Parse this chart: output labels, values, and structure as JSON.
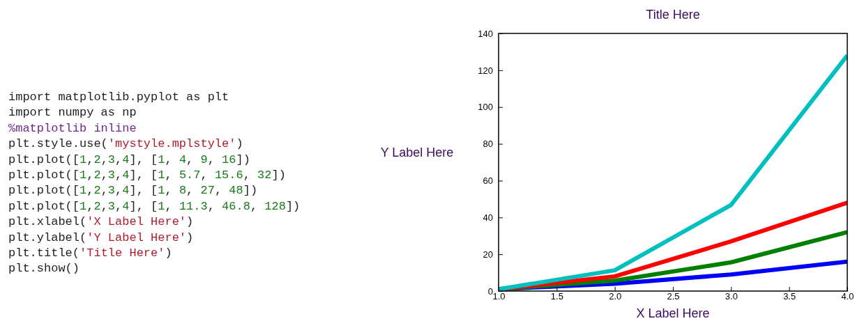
{
  "chart_data": {
    "type": "line",
    "title": "Title Here",
    "xlabel": "X Label Here",
    "ylabel": "Y Label Here",
    "x": [
      1,
      2,
      3,
      4
    ],
    "series": [
      {
        "color": "#0000ff",
        "values": [
          1,
          4,
          9,
          16
        ]
      },
      {
        "color": "#007f00",
        "values": [
          1,
          5.7,
          15.6,
          32
        ]
      },
      {
        "color": "#ff0000",
        "values": [
          1,
          8,
          27,
          48
        ]
      },
      {
        "color": "#00bfbf",
        "values": [
          1,
          11.3,
          46.8,
          128
        ]
      }
    ],
    "xlim": [
      1,
      4
    ],
    "xticks": [
      {
        "value": 1,
        "label": "1.0"
      },
      {
        "value": 1.5,
        "label": "1.5"
      },
      {
        "value": 2,
        "label": "2.0"
      },
      {
        "value": 2.5,
        "label": "2.5"
      },
      {
        "value": 3,
        "label": "3.0"
      },
      {
        "value": 3.5,
        "label": "3.5"
      },
      {
        "value": 4,
        "label": "4.0"
      }
    ],
    "ylim": [
      0,
      140
    ],
    "yticks": [
      0,
      20,
      40,
      60,
      80,
      100,
      120,
      140
    ],
    "grid": false,
    "marker": "none",
    "line_style": "solid",
    "annotations": [
      "import matplotlib.pyplot as plt",
      "import numpy as np",
      "%matplotlib inline",
      "plt.style.use('mystyle.mplstyle')",
      "plt.plot([1,2,3,4], [1, 4, 9, 16])",
      "plt.plot([1,2,3,4], [1, 5.7, 15.6, 32])",
      "plt.plot([1,2,3,4], [1, 8, 27, 48])",
      "plt.plot([1,2,3,4], [1, 11.3, 46.8, 128])",
      "plt.xlabel('X Label Here')",
      "plt.ylabel('Y Label Here')",
      "plt.title('Title Here')",
      "plt.show()"
    ]
  }
}
